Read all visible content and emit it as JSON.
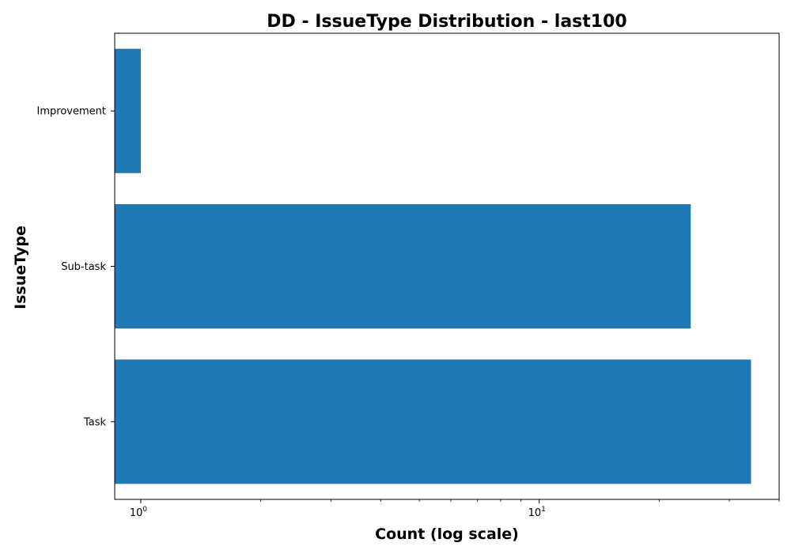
{
  "chart_data": {
    "type": "bar",
    "orientation": "horizontal",
    "title": "DD - IssueType Distribution - last100",
    "xlabel": "Count (log scale)",
    "ylabel": "IssueType",
    "x_scale": "log",
    "xlim": [
      0.86,
      40
    ],
    "categories": [
      "Improvement",
      "Sub-task",
      "Task"
    ],
    "values": [
      1,
      24,
      34
    ],
    "bar_color": "#1f77b4",
    "x_major_ticks": [
      {
        "value": 1,
        "base": "10",
        "exp": "0"
      },
      {
        "value": 10,
        "base": "10",
        "exp": "1"
      }
    ],
    "x_minor_ticks": [
      2,
      3,
      4,
      5,
      6,
      7,
      8,
      9,
      20,
      30,
      40
    ],
    "grid": false,
    "legend": false
  }
}
